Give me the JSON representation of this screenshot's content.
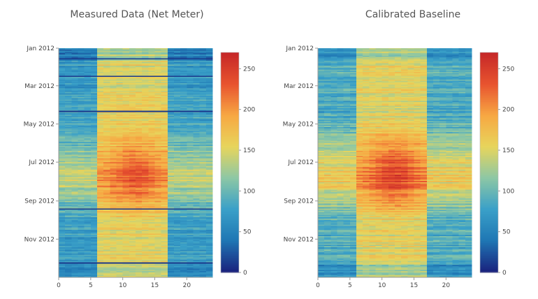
{
  "chart_data": [
    {
      "type": "heatmap",
      "title": "Measured Data (Net Meter)",
      "x": {
        "label": "",
        "range": [
          0,
          23
        ],
        "ticks": [
          0,
          5,
          10,
          15,
          20
        ]
      },
      "y": {
        "label": "",
        "range_start": "Jan 2012",
        "range_end": "Dec 2012",
        "tick_labels": [
          "Jan 2012",
          "Mar 2012",
          "May 2012",
          "Jul 2012",
          "Sep 2012",
          "Nov 2012"
        ]
      },
      "colorbar": {
        "min": 0,
        "max": 270,
        "ticks": [
          0,
          50,
          100,
          150,
          200,
          250
        ],
        "colorscale": [
          "#1a237e",
          "#1f77b4",
          "#3aa0c8",
          "#8dc7a5",
          "#e7d55c",
          "#f7a843",
          "#e8542f",
          "#c62828"
        ]
      },
      "pattern": {
        "night_level": 75,
        "day_level": 155,
        "summer_peak": 230,
        "winter_level": 120,
        "notes": "low overnight (hours 0-5 and 17-23), higher daytime (6-16), peak in July-August midday"
      }
    },
    {
      "type": "heatmap",
      "title": "Calibrated Baseline",
      "x": {
        "label": "",
        "range": [
          0,
          23
        ],
        "ticks": [
          0,
          5,
          10,
          15,
          20
        ]
      },
      "y": {
        "label": "",
        "range_start": "Jan 2012",
        "range_end": "Dec 2012",
        "tick_labels": [
          "Jan 2012",
          "Mar 2012",
          "May 2012",
          "Jul 2012",
          "Sep 2012",
          "Nov 2012"
        ]
      },
      "colorbar": {
        "min": 0,
        "max": 270,
        "ticks": [
          0,
          50,
          100,
          150,
          200,
          250
        ],
        "colorscale": [
          "#1a237e",
          "#1f77b4",
          "#3aa0c8",
          "#8dc7a5",
          "#e7d55c",
          "#f7a843",
          "#e8542f",
          "#c62828"
        ]
      },
      "pattern": {
        "night_level": 85,
        "day_level": 150,
        "summer_peak": 245,
        "winter_level": 115,
        "notes": "smoother baseline, strong red band in June-August hours 8-16"
      }
    }
  ]
}
